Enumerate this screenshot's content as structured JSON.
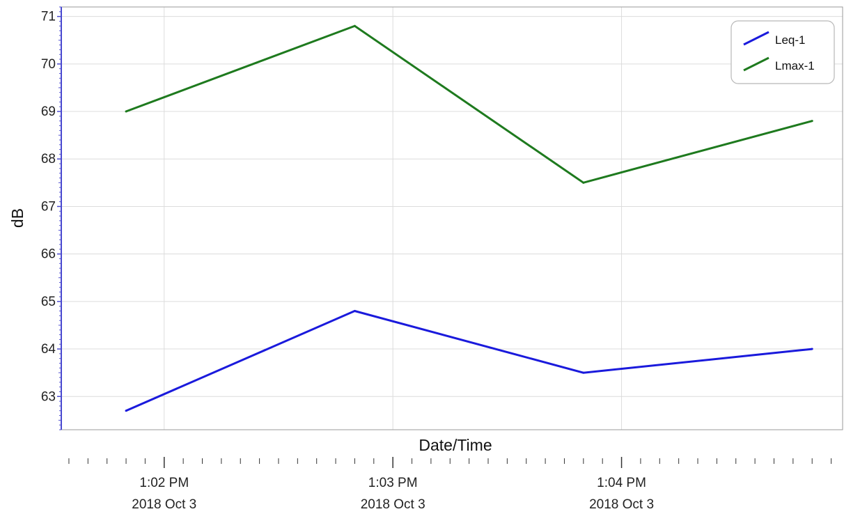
{
  "chart_data": {
    "type": "line",
    "xlabel": "Date/Time",
    "ylabel": "dB",
    "ylim": [
      62.3,
      71.2
    ],
    "y_ticks": [
      63,
      64,
      65,
      66,
      67,
      68,
      69,
      70,
      71
    ],
    "x_range": [
      "13:01:33",
      "13:04:58"
    ],
    "x_ticks": [
      {
        "time": "13:02:00",
        "label_time": "1:02 PM",
        "label_date": "2018 Oct 3"
      },
      {
        "time": "13:03:00",
        "label_time": "1:03 PM",
        "label_date": "2018 Oct 3"
      },
      {
        "time": "13:04:00",
        "label_time": "1:04 PM",
        "label_date": "2018 Oct 3"
      }
    ],
    "x": [
      "13:01:50",
      "13:02:50",
      "13:03:50",
      "13:04:50"
    ],
    "series": [
      {
        "name": "Leq-1",
        "color": "#1a1adc",
        "values": [
          62.7,
          64.8,
          63.5,
          64.0
        ]
      },
      {
        "name": "Lmax-1",
        "color": "#1e7a1e",
        "values": [
          69.0,
          70.8,
          67.5,
          68.8
        ]
      }
    ],
    "grid": true,
    "legend_position": "top-right",
    "ylabel_color": "#3333cc"
  }
}
